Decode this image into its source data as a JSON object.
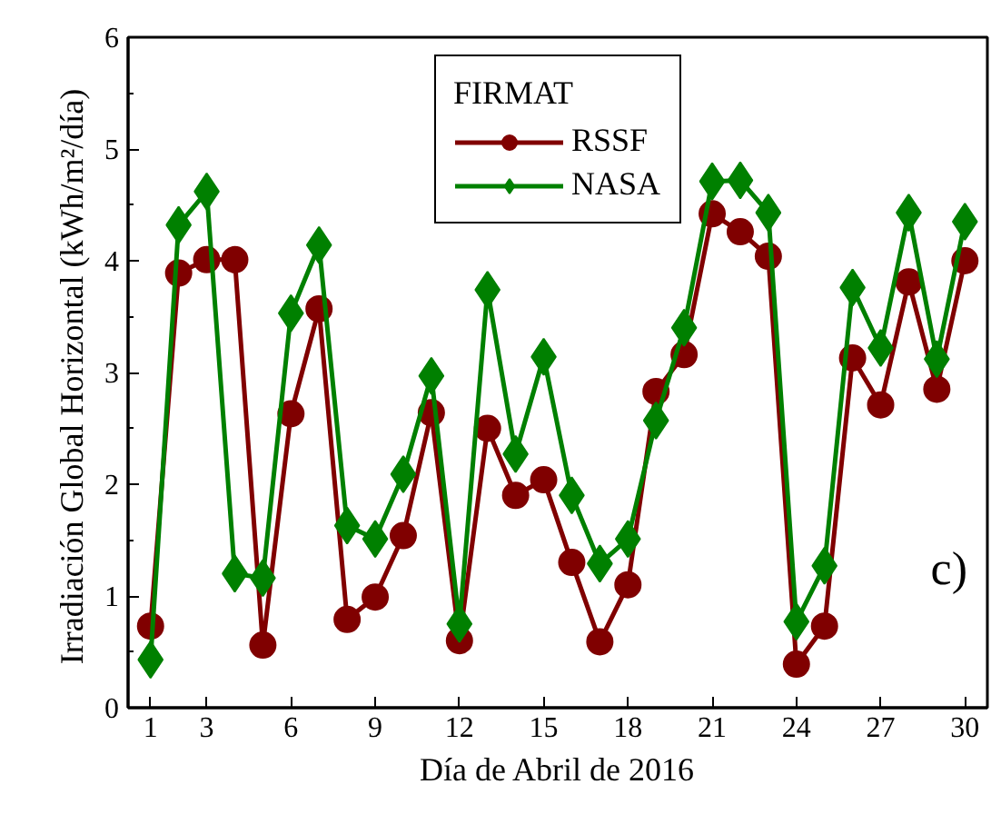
{
  "chart_data": {
    "type": "line",
    "xlabel": "Día de Abril de 2016",
    "ylabel": "Irradiación Global Horizontal  (kWh/m²/día)",
    "legend_title": "FIRMAT",
    "legend": "top",
    "grid": false,
    "x": [
      1,
      2,
      3,
      4,
      5,
      6,
      7,
      8,
      9,
      10,
      11,
      12,
      13,
      14,
      15,
      16,
      17,
      18,
      19,
      20,
      21,
      22,
      23,
      24,
      25,
      26,
      27,
      28,
      29,
      30
    ],
    "xlim": [
      0.2,
      30.8
    ],
    "xticks": [
      1,
      3,
      6,
      9,
      12,
      15,
      18,
      21,
      24,
      27,
      30
    ],
    "ylim": [
      0,
      6
    ],
    "yticks": [
      0,
      1,
      2,
      3,
      4,
      5,
      6
    ],
    "annotations": [
      "c)"
    ],
    "series": [
      {
        "name": "RSSF",
        "color": "#800000",
        "marker": "circle",
        "values": [
          0.73,
          3.89,
          4.01,
          4.01,
          0.56,
          2.63,
          3.57,
          0.79,
          0.99,
          1.54,
          2.64,
          0.6,
          2.5,
          1.9,
          2.04,
          1.3,
          0.59,
          1.1,
          2.83,
          3.16,
          4.42,
          4.26,
          4.04,
          0.39,
          0.73,
          3.13,
          2.71,
          3.81,
          2.85,
          4.0
        ]
      },
      {
        "name": "NASA",
        "color": "#008000",
        "marker": "diamond",
        "values": [
          0.43,
          4.32,
          4.62,
          1.2,
          1.16,
          3.53,
          4.14,
          1.63,
          1.51,
          2.09,
          2.97,
          0.75,
          3.74,
          2.27,
          3.14,
          1.9,
          1.29,
          1.51,
          2.57,
          3.4,
          4.71,
          4.72,
          4.43,
          0.77,
          1.27,
          3.76,
          3.22,
          4.43,
          3.12,
          4.35
        ]
      }
    ]
  }
}
